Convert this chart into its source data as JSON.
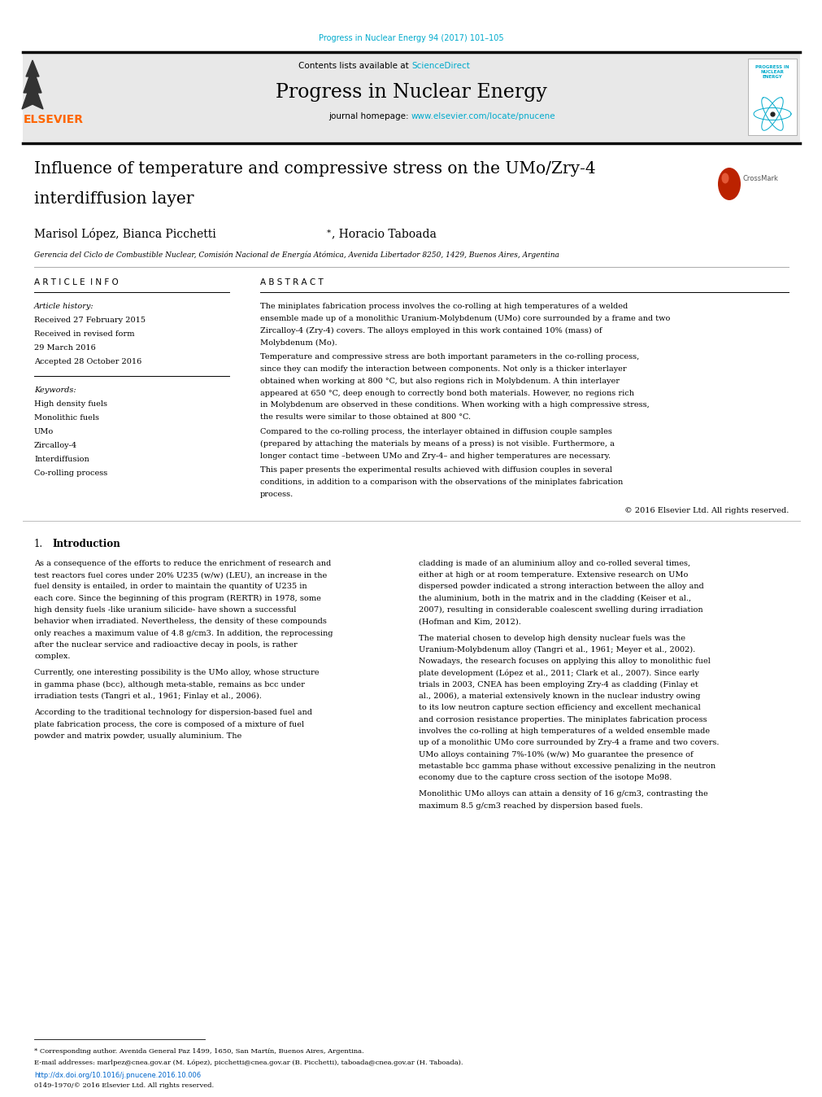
{
  "page_width": 9.92,
  "page_height": 13.23,
  "bg_color": "#ffffff",
  "top_journal_ref": "Progress in Nuclear Energy 94 (2017) 101–105",
  "top_journal_ref_color": "#00aacc",
  "header_bg": "#e8e8e8",
  "header_sciencedirect_color": "#00aacc",
  "journal_title": "Progress in Nuclear Energy",
  "journal_homepage_url": "www.elsevier.com/locate/pnucene",
  "journal_homepage_url_color": "#00aacc",
  "article_title_line1": "Influence of temperature and compressive stress on the UMo/Zry-4",
  "article_title_line2": "interdiffusion layer",
  "affiliation": "Gerencia del Ciclo de Combustible Nuclear, Comisión Nacional de Energía Atómica, Avenida Libertador 8250, 1429, Buenos Aires, Argentina",
  "section_article_info": "A R T I C L E  I N F O",
  "article_history_label": "Article history:",
  "received": "Received 27 February 2015",
  "received_revised": "Received in revised form",
  "received_revised2": "29 March 2016",
  "accepted": "Accepted 28 October 2016",
  "keywords_label": "Keywords:",
  "keywords": [
    "High density fuels",
    "Monolithic fuels",
    "UMo",
    "Zircalloy-4",
    "Interdiffusion",
    "Co-rolling process"
  ],
  "section_abstract": "A B S T R A C T",
  "abstract_p1": "The miniplates fabrication process involves the co-rolling at high temperatures of a welded ensemble made up of a monolithic Uranium-Molybdenum (UMo) core surrounded by a frame and two Zircalloy-4 (Zry-4) covers. The alloys employed in this work contained 10% (mass) of Molybdenum (Mo).",
  "abstract_p2": "   Temperature and compressive stress are both important parameters in the co-rolling process, since they can modify the interaction between components. Not only is a thicker interlayer obtained when working at 800 °C, but also regions rich in Molybdenum. A thin interlayer appeared at 650 °C, deep enough to correctly bond both materials. However, no regions rich in Molybdenum are observed in these conditions. When working with a high compressive stress, the results were similar to those obtained at 800 °C.",
  "abstract_p3": "   Compared to the co-rolling process, the interlayer obtained in diffusion couple samples (prepared by attaching the materials by means of a press) is not visible. Furthermore, a longer contact time –between UMo and Zry-4– and higher temperatures are necessary.",
  "abstract_p4": "   This paper presents the experimental results achieved with diffusion couples in several conditions, in addition to a comparison with the observations of the miniplates fabrication process.",
  "abstract_copyright": "© 2016 Elsevier Ltd. All rights reserved.",
  "intro_col1_p1": "   As a consequence of the efforts to reduce the enrichment of research and test reactors fuel cores under 20% U235 (w/w) (LEU), an increase in the fuel density is entailed, in order to maintain the quantity of U235 in each core. Since the beginning of this program (RERTR) in 1978, some high density fuels -like uranium silicide- have shown a successful behavior when irradiated. Nevertheless, the density of these compounds only reaches a maximum value of 4.8 g/cm3. In addition, the reprocessing after the nuclear service and radioactive decay in pools, is rather complex.",
  "intro_col1_p2": "   Currently, one interesting possibility is the UMo alloy, whose structure in gamma phase (bcc), although meta-stable, remains as bcc under irradiation tests (Tangri et al., 1961; Finlay et al., 2006).",
  "intro_col1_p3": "   According to the traditional technology for dispersion-based fuel and plate fabrication process, the core is composed of a mixture of fuel powder and matrix powder, usually aluminium. The",
  "intro_col2_p1": "cladding is made of an aluminium alloy and co-rolled several times, either at high or at room temperature. Extensive research on UMo dispersed powder indicated a strong interaction between the alloy and the aluminium, both in the matrix and in the cladding (Keiser et al., 2007), resulting in considerable coalescent swelling during irradiation (Hofman and Kim, 2012).",
  "intro_col2_p2": "   The material chosen to develop high density nuclear fuels was the Uranium-Molybdenum alloy (Tangri et al., 1961; Meyer et al., 2002). Nowadays, the research focuses on applying this alloy to monolithic fuel plate development (López et al., 2011; Clark et al., 2007). Since early trials in 2003, CNEA has been employing Zry-4 as cladding (Finlay et al., 2006), a material extensively known in the nuclear industry owing to its low neutron capture section efficiency and excellent mechanical and corrosion resistance properties. The miniplates fabrication process involves the co-rolling at high temperatures of a welded ensemble made up of a monolithic UMo core surrounded by Zry-4 a frame and two covers. UMo alloys containing 7%-10% (w/w) Mo guarantee the presence of metastable bcc gamma phase without excessive penalizing in the neutron economy due to the capture cross section of the isotope Mo98.",
  "intro_col2_p3": "   Monolithic UMo alloys can attain a density of 16 g/cm3, contrasting the maximum 8.5 g/cm3 reached by dispersion based fuels.",
  "footnote_star": "* Corresponding author. Avenida General Paz 1499, 1650, San Martín, Buenos Aires, Argentina.",
  "footnote_email_label": "E-mail addresses:",
  "footnote_emails": "marlpez@cnea.gov.ar (M. López), picchetti@cnea.gov.ar (B. Picchetti), taboada@cnea.gov.ar (H. Taboada).",
  "doi_text": "http://dx.doi.org/10.1016/j.pnucene.2016.10.006",
  "issn_text": "0149-1970/© 2016 Elsevier Ltd. All rights reserved.",
  "elsevier_color": "#ff6600",
  "link_color": "#0066cc"
}
